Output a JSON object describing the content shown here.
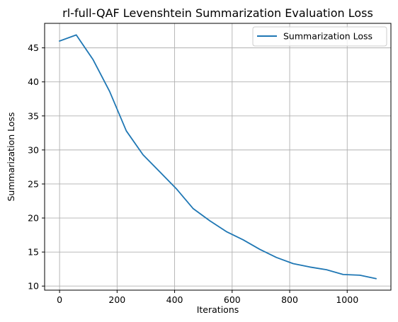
{
  "chart_data": {
    "type": "line",
    "title": "rl-full-QAF Levenshtein Summarization Evaluation Loss",
    "xlabel": "Iterations",
    "ylabel": "Summarization Loss",
    "xlim": [
      -52,
      1152
    ],
    "ylim": [
      9.4,
      48.6
    ],
    "xticks": [
      0,
      200,
      400,
      600,
      800,
      1000
    ],
    "yticks": [
      10,
      15,
      20,
      25,
      30,
      35,
      40,
      45
    ],
    "grid": true,
    "legend_position": "top-right",
    "series": [
      {
        "name": "Summarization Loss",
        "color": "#1f77b4",
        "x": [
          0,
          58,
          116,
          174,
          232,
          290,
          348,
          406,
          464,
          522,
          580,
          638,
          696,
          754,
          812,
          870,
          928,
          986,
          1044,
          1100
        ],
        "values": [
          46.0,
          46.9,
          43.3,
          38.6,
          32.8,
          29.3,
          26.8,
          24.3,
          21.4,
          19.6,
          18.0,
          16.8,
          15.4,
          14.2,
          13.3,
          12.8,
          12.4,
          11.7,
          11.6,
          11.1
        ]
      }
    ]
  }
}
